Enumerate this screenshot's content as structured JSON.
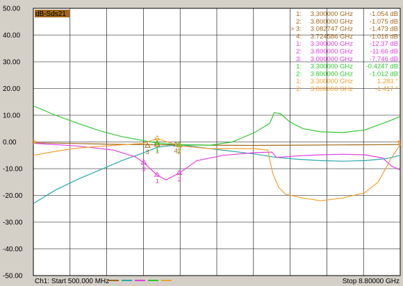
{
  "trace_badge": "dB-Sds21",
  "footer": {
    "start": "Ch1: Start  500.000 MHz",
    "stop": "Stop  8.80000 GHz"
  },
  "chart_data": {
    "type": "line",
    "xlim": [
      0.5,
      8.8
    ],
    "ylim": [
      -50,
      50
    ],
    "x_unit": "GHz",
    "y_unit": "dB",
    "yticks": [
      50,
      40,
      30,
      20,
      10,
      0,
      -10,
      -20,
      -30,
      -40,
      -50
    ],
    "ytick_labels": [
      "50.00",
      "40.00",
      "30.00",
      "20.00",
      "10.00",
      "0.00",
      "-10.00",
      "-20.00",
      "-30.00",
      "-40.00",
      "-50.00"
    ],
    "grid": true,
    "reference_level": 0,
    "series": [
      {
        "color": "#a0661b",
        "x": [
          0.5,
          1.5,
          2.5,
          3.3,
          3.8,
          4.5,
          5.5,
          6.5,
          7.5,
          8.8
        ],
        "y": [
          -0.3,
          -0.6,
          -0.9,
          -1.054,
          -1.075,
          -1.2,
          -1.3,
          -1.2,
          -1.1,
          -1.0
        ]
      },
      {
        "color": "#2aa6a6",
        "x": [
          0.5,
          1.0,
          1.5,
          2.0,
          2.5,
          3.0,
          3.3,
          3.8,
          4.5,
          5.5,
          6.0,
          6.5,
          7.0,
          7.5,
          8.0,
          8.5,
          8.8
        ],
        "y": [
          -23,
          -18,
          -14,
          -10.5,
          -7,
          -4,
          -2,
          -1,
          -2.5,
          -4.5,
          -5.8,
          -6.5,
          -7.0,
          -7.2,
          -7.0,
          -6.2,
          -5.0
        ]
      },
      {
        "color": "#e040e0",
        "x": [
          0.5,
          1.5,
          2.3,
          2.8,
          3.0,
          3.3,
          3.5,
          3.8,
          4.2,
          4.8,
          5.5,
          5.9,
          6.0,
          6.5,
          7.0,
          7.5,
          8.0,
          8.4,
          8.6,
          8.8
        ],
        "y": [
          -0.5,
          -1.5,
          -3,
          -5.5,
          -7.746,
          -12.37,
          -14.2,
          -11.66,
          -7,
          -5,
          -4,
          -3.8,
          -5.8,
          -5.2,
          -4.8,
          -4.6,
          -4.8,
          -6,
          -9,
          -10.5
        ]
      },
      {
        "color": "#2ec82e",
        "x": [
          0.5,
          1.0,
          1.5,
          2.0,
          2.5,
          3.3,
          3.8,
          4.5,
          5.0,
          5.5,
          5.85,
          5.95,
          6.1,
          6.3,
          6.6,
          7.0,
          7.5,
          8.0,
          8.5,
          8.8
        ],
        "y": [
          13.5,
          10,
          7,
          4.2,
          2,
          -0.4247,
          -1.012,
          -1.2,
          0,
          3.5,
          7,
          11,
          10.5,
          7.5,
          5,
          3.8,
          3.5,
          4.5,
          7.5,
          9.5
        ]
      },
      {
        "color": "#f0a030",
        "x": [
          0.5,
          1.0,
          1.5,
          2.0,
          2.5,
          3.0,
          3.3,
          3.8,
          4.5,
          5.0,
          5.5,
          5.8,
          5.92,
          6.05,
          6.2,
          6.6,
          7.0,
          7.5,
          8.0,
          8.3,
          8.6,
          8.8
        ],
        "y": [
          -5,
          -3.5,
          -2.3,
          -1.6,
          -1.1,
          -0.5,
          1.283,
          -1.417,
          -2.5,
          -2.5,
          -2.5,
          -3,
          -12,
          -17,
          -19.5,
          -21,
          -22,
          -21,
          -19,
          -15,
          -6,
          -1
        ]
      }
    ],
    "markers": [
      {
        "series": 0,
        "label": "1",
        "x": 3.3,
        "y": -1.054
      },
      {
        "series": 0,
        "label": "2",
        "x": 3.8,
        "y": -1.075
      },
      {
        "series": 0,
        "label": "3",
        "x": 3.082747,
        "y": -1.473
      },
      {
        "series": 0,
        "label": "4",
        "x": 3.724586,
        "y": -1.016
      },
      {
        "series": 2,
        "label": "1",
        "x": 3.3,
        "y": -12.37
      },
      {
        "series": 2,
        "label": "2",
        "x": 3.8,
        "y": -11.66
      },
      {
        "series": 2,
        "label": "3",
        "x": 3.0,
        "y": -7.746
      },
      {
        "series": 3,
        "label": "1",
        "x": 3.3,
        "y": -0.4247
      },
      {
        "series": 3,
        "label": "2",
        "x": 3.8,
        "y": -1.012
      },
      {
        "series": 4,
        "label": "1",
        "x": 3.3,
        "y": 1.283
      },
      {
        "series": 4,
        "label": "2",
        "x": 3.8,
        "y": -1.417
      }
    ],
    "marker_table": [
      {
        "num": "1:",
        "freq": "3.300000 GHz",
        "value": "-1.054 dB",
        "color": "#a0661b"
      },
      {
        "num": "2:",
        "freq": "3.800000 GHz",
        "value": "-1.075 dB",
        "color": "#a0661b"
      },
      {
        "num": "> 3:",
        "freq": "3.082747 GHz",
        "value": "-1.473 dB",
        "color": "#a0661b"
      },
      {
        "num": "4:",
        "freq": "3.724586 GHz",
        "value": "-1.016 dB",
        "color": "#a0661b"
      },
      {
        "num": "1:",
        "freq": "3.300000 GHz",
        "value": "-12.37 dB",
        "color": "#e040e0"
      },
      {
        "num": "2:",
        "freq": "3.800000 GHz",
        "value": "-11.66 dB",
        "color": "#e040e0"
      },
      {
        "num": "3:",
        "freq": "3.000000 GHz",
        "value": "-7.746 dB",
        "color": "#e040e0"
      },
      {
        "num": "1:",
        "freq": "3.300000 GHz",
        "value": "-0.4247 dB",
        "color": "#2ec82e"
      },
      {
        "num": "2:",
        "freq": "3.800000 GHz",
        "value": "-1.012 dB",
        "color": "#2ec82e"
      },
      {
        "num": "1:",
        "freq": "3.300000 GHz",
        "value": "1.283 °",
        "color": "#f0a030"
      },
      {
        "num": "2:",
        "freq": "3.800000 GHz",
        "value": "-1.417 °",
        "color": "#f0a030"
      }
    ],
    "legend_swatches": [
      "#a0661b",
      "#2aa6a6",
      "#e040e0",
      "#2ec82e",
      "#f0a030"
    ],
    "reference_arrow_color": "#f0a030"
  }
}
